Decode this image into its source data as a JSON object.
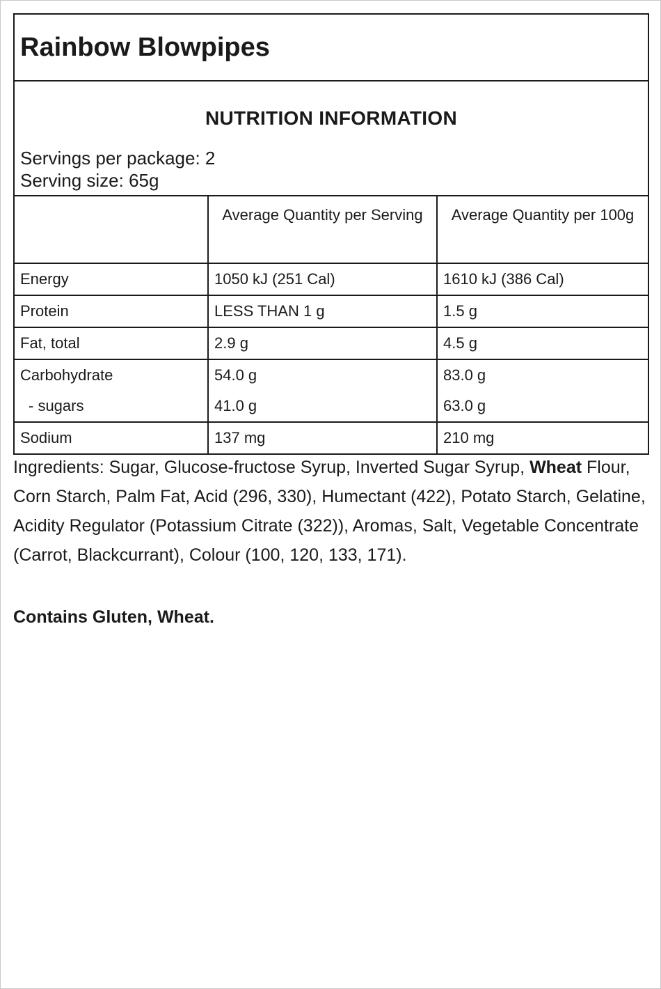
{
  "product": {
    "title": "Rainbow Blowpipes"
  },
  "nutrition": {
    "heading": "NUTRITION INFORMATION",
    "servings_per_package": "Servings per package: 2",
    "serving_size": "Serving size: 65g",
    "columns": {
      "per_serving": "Average Quantity per Serving",
      "per_100g": "Average Quantity per 100g"
    },
    "rows": [
      {
        "name": "Energy",
        "serving": "1050 kJ (251 Cal)",
        "per100": "1610 kJ (386 Cal)"
      },
      {
        "name": "Protein",
        "serving": "LESS THAN 1 g",
        "per100": "1.5 g"
      },
      {
        "name": "Fat, total",
        "serving": "2.9 g",
        "per100": "4.5 g"
      },
      {
        "name": "Carbohydrate",
        "serving": "54.0 g",
        "per100": "83.0 g"
      },
      {
        "name": "- sugars",
        "serving": "41.0 g",
        "per100": "63.0 g"
      },
      {
        "name": "Sodium",
        "serving": "137 mg",
        "per100": "210 mg"
      }
    ]
  },
  "ingredients": {
    "prefix": "Ingredients: Sugar, Glucose-fructose Syrup, Inverted Sugar Syrup, ",
    "allergen_word": "Wheat",
    "suffix": " Flour, Corn Starch, Palm Fat, Acid (296, 330), Humectant (422), Potato Starch, Gelatine, Acidity Regulator (Potassium Citrate (322)), Aromas, Salt, Vegetable Concentrate (Carrot, Blackcurrant), Colour (100, 120, 133, 171).",
    "contains": "Contains Gluten, Wheat."
  }
}
